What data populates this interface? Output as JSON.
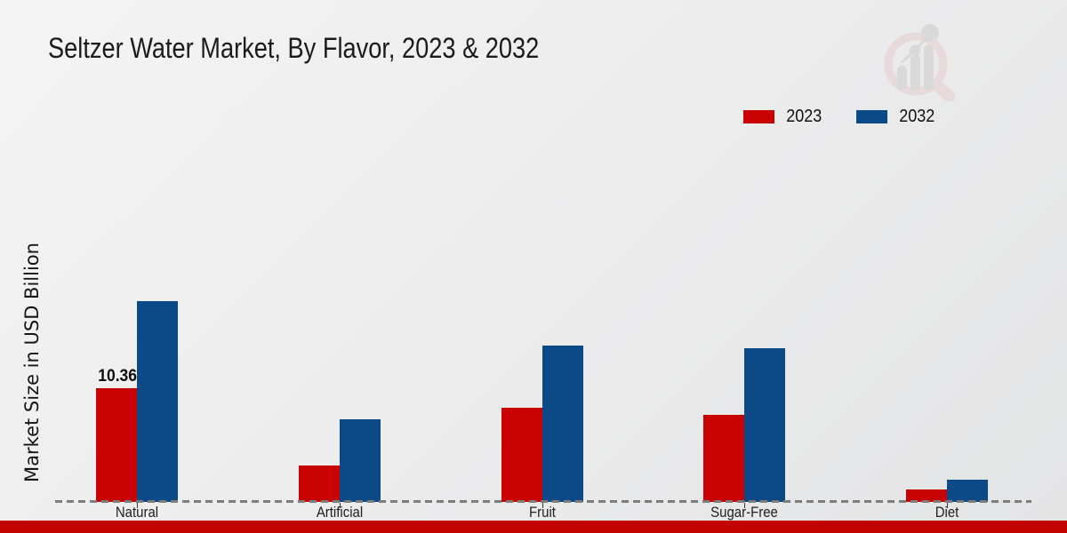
{
  "title": "Seltzer Water Market, By Flavor, 2023 & 2032",
  "chart_data": {
    "type": "bar",
    "title": "Seltzer Water Market, By Flavor, 2023 & 2032",
    "xlabel": "",
    "ylabel": "Market Size in USD Billion",
    "categories": [
      "Natural",
      "Artificial",
      "Fruit",
      "Sugar-Free",
      "Diet"
    ],
    "series": [
      {
        "name": "2023",
        "color": "#c80202",
        "values": [
          10.36,
          3.35,
          8.6,
          7.9,
          1.15
        ]
      },
      {
        "name": "2032",
        "color": "#0c4a87",
        "values": [
          18.3,
          7.5,
          14.25,
          14.0,
          2.05
        ]
      }
    ],
    "value_labels": [
      {
        "series": "2023",
        "category": "Natural",
        "text": "10.36"
      }
    ],
    "ylim": [
      0,
      20
    ],
    "grid": "off",
    "legend_position": "top-right",
    "baseline_style": "dashed",
    "notes": "Only the Natural 2023 bar is labeled; other values estimated from bar heights"
  },
  "footer": {
    "accent_bar_color": "#c30202"
  },
  "branding": {
    "watermark": "magnifier-bar-chart-logo"
  }
}
